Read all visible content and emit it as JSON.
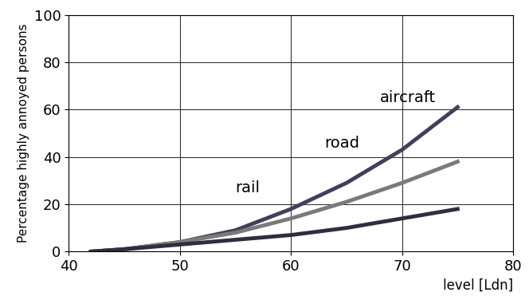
{
  "chart_data": {
    "type": "line",
    "x_label": "level [Ldn]",
    "y_label": "Percentage highly annoyed persons",
    "x": [
      42,
      45,
      50,
      55,
      60,
      65,
      70,
      75
    ],
    "series": [
      {
        "name": "aircraft",
        "color": "#40405a",
        "values": [
          0,
          1,
          4,
          9,
          18,
          29,
          43,
          61
        ]
      },
      {
        "name": "road",
        "color": "#7a7a7a",
        "values": [
          0,
          1,
          4,
          8,
          14,
          21,
          29,
          38
        ]
      },
      {
        "name": "rail",
        "color": "#2e2e3e",
        "values": [
          0,
          1,
          3,
          5,
          7,
          10,
          14,
          18
        ]
      }
    ],
    "xlim": [
      40,
      80
    ],
    "xticks": [
      40,
      50,
      60,
      70,
      80
    ],
    "ylim": [
      0,
      100
    ],
    "yticks": [
      0,
      20,
      40,
      60,
      80,
      100
    ],
    "grid": true
  }
}
